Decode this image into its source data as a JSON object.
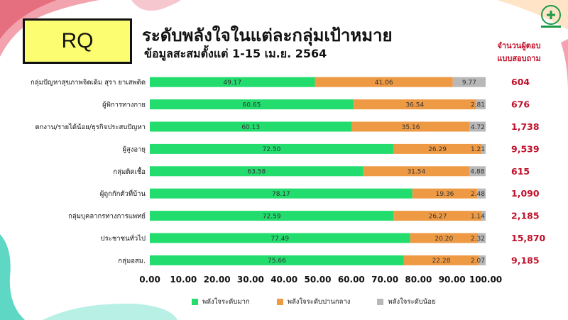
{
  "header": {
    "rq_label": "RQ",
    "title": "ระดับพลังใจในแต่ละกลุ่มเป้าหมาย",
    "subtitle": "ข้อมูลสะสมตั้งแต่ 1-15 เม.ย. 2564",
    "respondents_label_line1": "จำนวนผู้ตอบ",
    "respondents_label_line2": "แบบสอบถาม"
  },
  "colors": {
    "high": "#22dc6e",
    "medium": "#ee9a45",
    "low": "#b8b8b8",
    "respondents": "#c0102a",
    "rq_box": "#fdfd72"
  },
  "chart_data": {
    "type": "bar",
    "orientation": "horizontal",
    "stacked": true,
    "categories": [
      "กลุ่มปัญหาสุขภาพจิตเดิม สุรา ยาเสพติด",
      "ผู้พิการทางกาย",
      "ตกงาน/รายได้น้อย/ธุรกิจประสบปัญหา",
      "ผู้สูงอายุ",
      "กลุ่มติดเชื้อ",
      "ผู้ถูกกักตัวที่บ้าน",
      "กลุ่มบุคลากรทางการแพทย์",
      "ประชาชนทั่วไป",
      "กลุ่มอสม."
    ],
    "series": [
      {
        "name": "พลังใจระดับมาก",
        "values": [
          49.17,
          60.65,
          60.13,
          72.5,
          63.58,
          78.17,
          72.59,
          77.49,
          75.66
        ],
        "labels": [
          "49.17",
          "60.65",
          "60.13",
          "72.50",
          "63.58",
          "78.17",
          "72.59",
          "77.49",
          "75.66"
        ]
      },
      {
        "name": "พลังใจระดับปานกลาง",
        "values": [
          41.06,
          36.54,
          35.16,
          26.29,
          31.54,
          19.36,
          26.27,
          20.2,
          22.28
        ],
        "labels": [
          "41.06",
          "36.54",
          "35.16",
          "26.29",
          "31.54",
          "19.36",
          "26.27",
          "20.20",
          "22.28"
        ]
      },
      {
        "name": "พลังใจระดับน้อย",
        "values": [
          9.77,
          2.81,
          4.72,
          1.21,
          4.88,
          2.48,
          1.14,
          2.32,
          2.07
        ],
        "labels": [
          "9.77",
          "2.81",
          "4.72",
          "1.21",
          "4.88",
          "2.48",
          "1.14",
          "2.32",
          "2.07"
        ]
      }
    ],
    "respondents": [
      "604",
      "676",
      "1,738",
      "9,539",
      "615",
      "1,090",
      "2,185",
      "15,870",
      "9,185"
    ],
    "xlim": [
      0,
      100
    ],
    "xticks": [
      "0.00",
      "10.00",
      "20.00",
      "30.00",
      "40.00",
      "50.00",
      "60.00",
      "70.00",
      "80.00",
      "90.00",
      "100.00"
    ],
    "legend_position": "bottom"
  }
}
